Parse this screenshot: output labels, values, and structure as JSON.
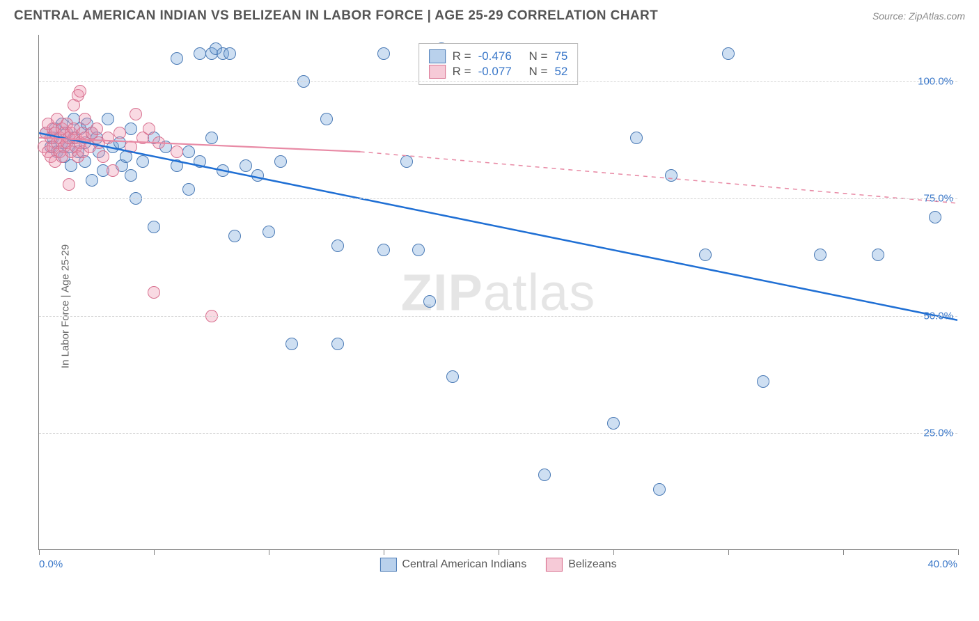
{
  "header": {
    "title": "CENTRAL AMERICAN INDIAN VS BELIZEAN IN LABOR FORCE | AGE 25-29 CORRELATION CHART",
    "source_label": "Source:",
    "source_name": "ZipAtlas.com"
  },
  "ylabel": "In Labor Force | Age 25-29",
  "watermark": {
    "part1": "ZIP",
    "part2": "atlas"
  },
  "axes": {
    "xlim": [
      0,
      40
    ],
    "ylim": [
      0,
      110
    ],
    "xtick_positions": [
      0,
      5,
      10,
      15,
      20,
      25,
      30,
      35,
      40
    ],
    "x_label_min": "0.0%",
    "x_label_max": "40.0%",
    "ygrid": [
      {
        "value": 25,
        "label": "25.0%"
      },
      {
        "value": 50,
        "label": "50.0%"
      },
      {
        "value": 75,
        "label": "75.0%"
      },
      {
        "value": 100,
        "label": "100.0%"
      }
    ],
    "grid_color": "#d5d5d5",
    "axis_color": "#808080",
    "tick_label_color": "#3b78c9"
  },
  "stats": {
    "rows": [
      {
        "series": "a",
        "r_label": "R =",
        "r_value": "-0.476",
        "n_label": "N =",
        "n_value": "75"
      },
      {
        "series": "b",
        "r_label": "R =",
        "r_value": "-0.077",
        "n_label": "N =",
        "n_value": "52"
      }
    ]
  },
  "legend": {
    "items": [
      {
        "series": "a",
        "label": "Central American Indians"
      },
      {
        "series": "b",
        "label": "Belizeans"
      }
    ]
  },
  "chart": {
    "type": "scatter",
    "background_color": "#ffffff",
    "series": [
      {
        "id": "a",
        "name": "Central American Indians",
        "color_fill": "rgba(116,163,218,0.35)",
        "color_stroke": "#4a7ab5",
        "marker_size": 18,
        "trend": {
          "x1": 0,
          "y1": 89,
          "x2_solid": 40,
          "y2_solid": 49,
          "color": "#1f6fd4",
          "width": 2.5,
          "dash_from_x": 40
        },
        "points": [
          [
            0.3,
            89
          ],
          [
            0.5,
            86
          ],
          [
            0.6,
            88
          ],
          [
            0.7,
            90
          ],
          [
            0.8,
            85
          ],
          [
            1.0,
            91
          ],
          [
            1.0,
            87
          ],
          [
            1.1,
            84
          ],
          [
            1.2,
            89
          ],
          [
            1.3,
            86
          ],
          [
            1.4,
            82
          ],
          [
            1.5,
            88
          ],
          [
            1.5,
            92
          ],
          [
            1.7,
            85
          ],
          [
            1.8,
            90
          ],
          [
            2.0,
            87
          ],
          [
            2.0,
            83
          ],
          [
            2.1,
            91
          ],
          [
            2.3,
            89
          ],
          [
            2.3,
            79
          ],
          [
            2.5,
            88
          ],
          [
            2.6,
            85
          ],
          [
            2.8,
            81
          ],
          [
            3.0,
            92
          ],
          [
            3.2,
            86
          ],
          [
            3.5,
            87
          ],
          [
            3.6,
            82
          ],
          [
            3.8,
            84
          ],
          [
            4.0,
            90
          ],
          [
            4.0,
            80
          ],
          [
            4.2,
            75
          ],
          [
            4.5,
            83
          ],
          [
            5.0,
            88
          ],
          [
            5.0,
            69
          ],
          [
            5.5,
            86
          ],
          [
            6.0,
            82
          ],
          [
            6.0,
            105
          ],
          [
            6.5,
            85
          ],
          [
            6.5,
            77
          ],
          [
            7.0,
            83
          ],
          [
            7.0,
            106
          ],
          [
            7.5,
            106
          ],
          [
            7.5,
            88
          ],
          [
            7.7,
            107
          ],
          [
            8.0,
            81
          ],
          [
            8.0,
            106
          ],
          [
            8.3,
            106
          ],
          [
            8.5,
            67
          ],
          [
            9.0,
            82
          ],
          [
            9.5,
            80
          ],
          [
            10.0,
            68
          ],
          [
            10.5,
            83
          ],
          [
            11.0,
            44
          ],
          [
            11.5,
            100
          ],
          [
            12.5,
            92
          ],
          [
            13.0,
            44
          ],
          [
            13.0,
            65
          ],
          [
            15.0,
            106
          ],
          [
            15.0,
            64
          ],
          [
            16.0,
            83
          ],
          [
            16.5,
            64
          ],
          [
            17.0,
            53
          ],
          [
            17.5,
            107
          ],
          [
            18.0,
            37
          ],
          [
            22.0,
            16
          ],
          [
            25.0,
            27
          ],
          [
            26.0,
            88
          ],
          [
            27.0,
            13
          ],
          [
            27.5,
            80
          ],
          [
            29.0,
            63
          ],
          [
            30.0,
            106
          ],
          [
            31.5,
            36
          ],
          [
            34.0,
            63
          ],
          [
            36.5,
            63
          ],
          [
            39.0,
            71
          ]
        ]
      },
      {
        "id": "b",
        "name": "Belizeans",
        "color_fill": "rgba(238,150,175,0.35)",
        "color_stroke": "#d8708f",
        "marker_size": 18,
        "trend": {
          "x1": 0,
          "y1": 88,
          "x2_solid": 14,
          "y2_solid": 85,
          "x2_dash": 40,
          "y2_dash": 74,
          "color": "#e88aa5",
          "width": 2.2
        },
        "points": [
          [
            0.2,
            86
          ],
          [
            0.3,
            89
          ],
          [
            0.4,
            85
          ],
          [
            0.4,
            91
          ],
          [
            0.5,
            88
          ],
          [
            0.5,
            84
          ],
          [
            0.6,
            90
          ],
          [
            0.6,
            86
          ],
          [
            0.7,
            89
          ],
          [
            0.7,
            83
          ],
          [
            0.8,
            87
          ],
          [
            0.8,
            92
          ],
          [
            0.9,
            85
          ],
          [
            0.9,
            88
          ],
          [
            1.0,
            90
          ],
          [
            1.0,
            84
          ],
          [
            1.1,
            86
          ],
          [
            1.1,
            89
          ],
          [
            1.2,
            87
          ],
          [
            1.2,
            91
          ],
          [
            1.3,
            88
          ],
          [
            1.3,
            78
          ],
          [
            1.4,
            85
          ],
          [
            1.4,
            89
          ],
          [
            1.5,
            90
          ],
          [
            1.5,
            95
          ],
          [
            1.6,
            86
          ],
          [
            1.6,
            88
          ],
          [
            1.7,
            84
          ],
          [
            1.7,
            97
          ],
          [
            1.8,
            87
          ],
          [
            1.8,
            98
          ],
          [
            1.9,
            85
          ],
          [
            1.9,
            89
          ],
          [
            2.0,
            88
          ],
          [
            2.0,
            92
          ],
          [
            2.2,
            86
          ],
          [
            2.3,
            89
          ],
          [
            2.5,
            90
          ],
          [
            2.6,
            87
          ],
          [
            2.8,
            84
          ],
          [
            3.0,
            88
          ],
          [
            3.2,
            81
          ],
          [
            3.5,
            89
          ],
          [
            4.0,
            86
          ],
          [
            4.2,
            93
          ],
          [
            4.5,
            88
          ],
          [
            4.8,
            90
          ],
          [
            5.0,
            55
          ],
          [
            5.2,
            87
          ],
          [
            6.0,
            85
          ],
          [
            7.5,
            50
          ]
        ]
      }
    ]
  }
}
